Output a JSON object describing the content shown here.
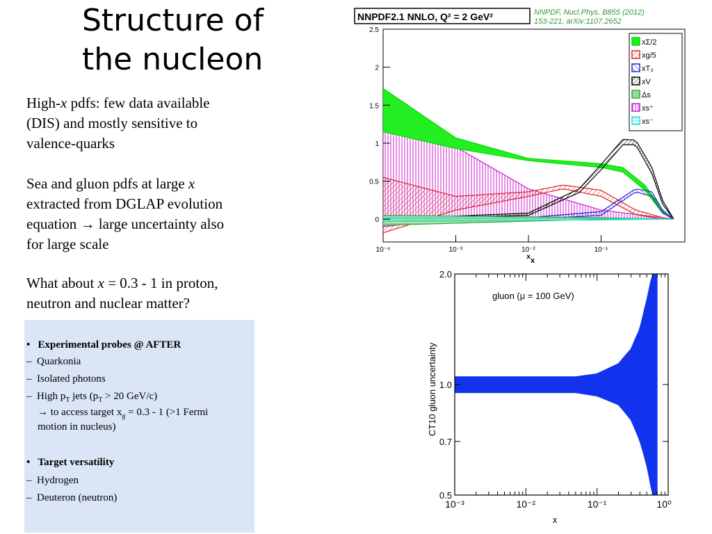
{
  "slide": {
    "title_line1": "Structure of",
    "title_line2": "the nucleon"
  },
  "text": {
    "p1_line1": "High-",
    "p1_line1_it": "x",
    "p1_line1_rest": " pdfs: few data available",
    "p1_line2": "(DIS) and mostly sensitive to",
    "p1_line3": "valence-quarks",
    "p2_line1_a": "Sea and gluon pdfs at large ",
    "p2_line1_it": "x",
    "p2_line2": "extracted from DGLAP evolution",
    "p2_line3": "equation → large uncertainty also",
    "p2_line4": "for large scale",
    "p3_line1_a": "What about ",
    "p3_line1_it": "x",
    "p3_line1_b": " = 0.3 - 1 in proton,",
    "p3_line2": "neutron and nuclear matter?"
  },
  "box": {
    "h1": "Experimental probes @ AFTER",
    "items1": [
      "Quarkonia",
      "Isolated photons",
      "High p",
      "→ to access target x",
      "motion in nucleus)"
    ],
    "i3_sub": "T",
    "i3_rest": " jets (p",
    "i3_sub2": "T",
    "i3_tail": " > 20 GeV/c)",
    "i4_sub": "g",
    "i4_tail": " = 0.3 - 1 (>1 Fermi",
    "h2": "Target versatility",
    "items2": [
      "Hydrogen",
      "Deuteron (neutron)"
    ],
    "bullet": "•",
    "dash": "–"
  },
  "chart_data": [
    {
      "type": "area",
      "title": "NNPDF2.1 NNLO, Q² = 2 GeV²",
      "citation_line1": "NNPDF, Nucl.Phys. B855 (2012)",
      "citation_line2": "153-221, arXiv:1107.2652",
      "xlabel": "x",
      "ylabel": "",
      "x_scale": "log",
      "xlim": [
        0.0001,
        1
      ],
      "ylim": [
        -0.3,
        2.5
      ],
      "x_ticks": [
        "10⁻⁴",
        "10⁻³",
        "10⁻²",
        "10⁻¹"
      ],
      "y_ticks": [
        "2.5",
        "2",
        "1.5",
        "1",
        "0.5",
        "0"
      ],
      "legend_position": "top-right",
      "series": [
        {
          "name": "xΣ/2",
          "color": "#00dd00",
          "x": [
            0.0001,
            0.001,
            0.01,
            0.1,
            0.2,
            0.4,
            0.7,
            1.0
          ],
          "low": [
            1.15,
            0.93,
            0.77,
            0.68,
            0.62,
            0.38,
            0.08,
            0.0
          ],
          "high": [
            1.72,
            1.07,
            0.8,
            0.73,
            0.68,
            0.45,
            0.12,
            0.0
          ]
        },
        {
          "name": "xg/5",
          "color": "#dd2222",
          "x": [
            0.0001,
            0.001,
            0.01,
            0.03,
            0.1,
            0.3,
            0.7,
            1.0
          ],
          "low": [
            -0.18,
            0.12,
            0.3,
            0.4,
            0.3,
            0.06,
            0.0,
            0.0
          ],
          "high": [
            0.55,
            0.3,
            0.36,
            0.45,
            0.38,
            0.12,
            0.02,
            0.0
          ]
        },
        {
          "name": "xT₃",
          "color": "#2222dd",
          "x": [
            0.0001,
            0.01,
            0.1,
            0.3,
            0.5,
            0.7,
            1.0
          ],
          "low": [
            0.0,
            0.0,
            0.05,
            0.36,
            0.3,
            0.08,
            0.0
          ],
          "high": [
            0.0,
            0.02,
            0.1,
            0.4,
            0.36,
            0.12,
            0.0
          ]
        },
        {
          "name": "xV",
          "color": "#000000",
          "x": [
            0.0001,
            0.01,
            0.05,
            0.1,
            0.2,
            0.3,
            0.5,
            0.7,
            1.0
          ],
          "low": [
            0.0,
            0.05,
            0.35,
            0.65,
            0.98,
            0.98,
            0.6,
            0.2,
            0.0
          ],
          "high": [
            0.0,
            0.08,
            0.4,
            0.72,
            1.05,
            1.04,
            0.68,
            0.25,
            0.0
          ]
        },
        {
          "name": "Δs",
          "color": "#33aa33",
          "x": [
            0.0001,
            0.1,
            1.0
          ],
          "low": [
            -0.08,
            0.0,
            0.0
          ],
          "high": [
            0.05,
            0.02,
            0.0
          ]
        },
        {
          "name": "xs⁺",
          "color": "#cc22cc",
          "x": [
            0.0001,
            0.0005,
            0.001,
            0.01,
            0.1,
            1.0
          ],
          "low": [
            -0.1,
            -0.02,
            0.0,
            0.0,
            0.0,
            0.0
          ],
          "high": [
            1.7,
            1.25,
            0.95,
            0.4,
            0.12,
            0.0
          ]
        },
        {
          "name": "xs⁻",
          "color": "#33dddd",
          "x": [
            0.0001,
            0.1,
            1.0
          ],
          "low": [
            -0.02,
            -0.01,
            0.0
          ],
          "high": [
            0.02,
            0.01,
            0.0
          ]
        }
      ]
    },
    {
      "type": "area",
      "title": "",
      "annotation": "gluon (μ = 100 GeV)",
      "xlabel": "x",
      "ylabel": "CT10 gluon uncertainty",
      "x_scale": "log",
      "y_scale": "log",
      "xlim": [
        0.001,
        1
      ],
      "ylim": [
        0.5,
        2.0
      ],
      "x_ticks": [
        "10⁻³",
        "10⁻²",
        "10⁻¹",
        "10⁰"
      ],
      "y_ticks": [
        "2.0",
        "1.0",
        "0.7",
        "0.5"
      ],
      "series": [
        {
          "name": "",
          "color": "#1133ee",
          "x": [
            0.001,
            0.01,
            0.05,
            0.1,
            0.2,
            0.3,
            0.4,
            0.5,
            0.6,
            0.7
          ],
          "low": [
            0.95,
            0.95,
            0.95,
            0.93,
            0.88,
            0.8,
            0.7,
            0.6,
            0.5,
            0.5
          ],
          "high": [
            1.05,
            1.05,
            1.05,
            1.07,
            1.14,
            1.25,
            1.42,
            1.7,
            2.0,
            2.0
          ]
        }
      ]
    }
  ]
}
